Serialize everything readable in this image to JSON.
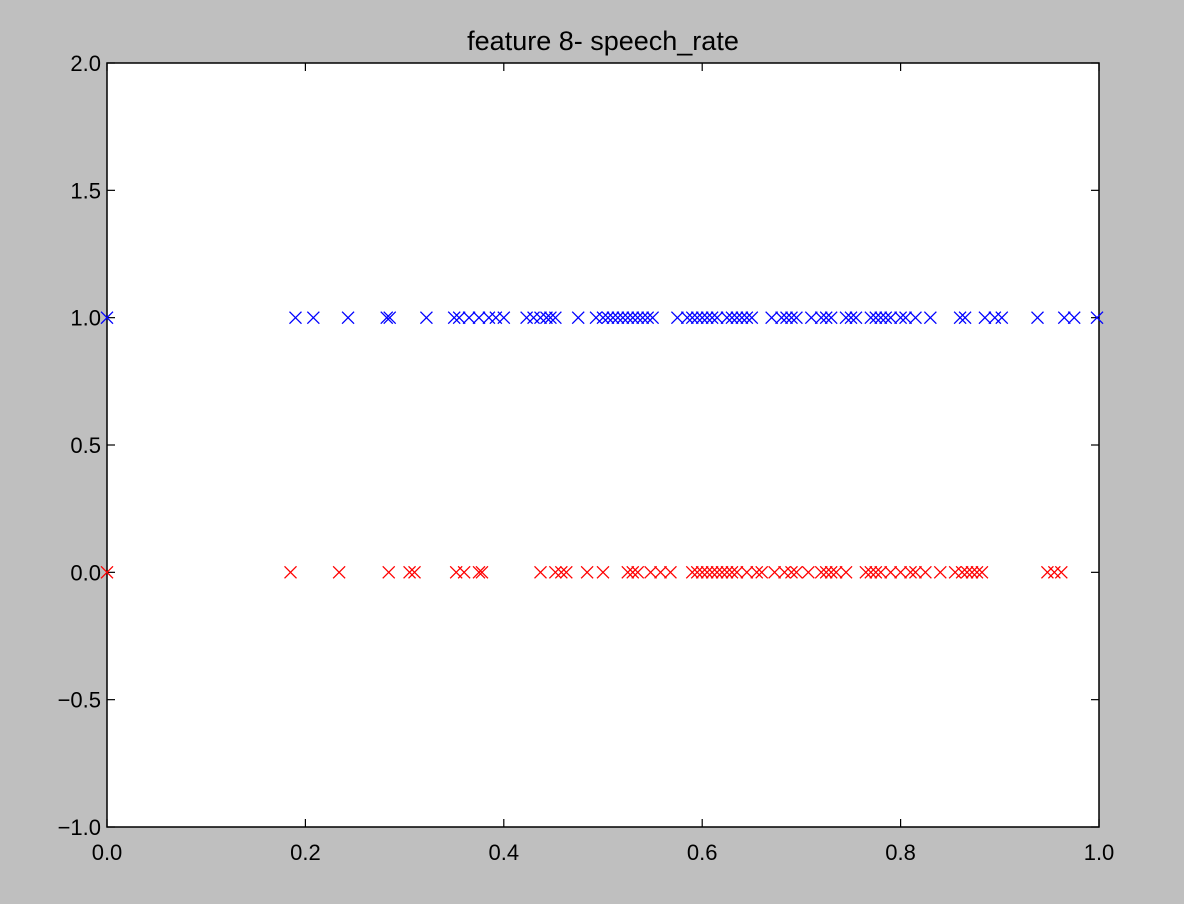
{
  "chart_data": {
    "type": "scatter",
    "title": "feature 8- speech_rate",
    "xlabel": "",
    "ylabel": "",
    "xlim": [
      0.0,
      1.0
    ],
    "ylim": [
      -1.0,
      2.0
    ],
    "x_ticks": [
      "0.0",
      "0.2",
      "0.4",
      "0.6",
      "0.8",
      "1.0"
    ],
    "y_ticks": [
      "−1.0",
      "−0.5",
      "0.0",
      "0.5",
      "1.0",
      "1.5",
      "2.0"
    ],
    "grid": false,
    "legend": "none",
    "marker": "x",
    "series": [
      {
        "color": "#0000ff",
        "y": 1.0,
        "x": [
          0.0,
          0.19,
          0.208,
          0.243,
          0.282,
          0.285,
          0.322,
          0.35,
          0.355,
          0.365,
          0.375,
          0.385,
          0.392,
          0.4,
          0.423,
          0.43,
          0.437,
          0.443,
          0.447,
          0.452,
          0.475,
          0.493,
          0.5,
          0.505,
          0.51,
          0.515,
          0.52,
          0.525,
          0.53,
          0.535,
          0.54,
          0.545,
          0.55,
          0.575,
          0.585,
          0.59,
          0.595,
          0.6,
          0.605,
          0.61,
          0.615,
          0.625,
          0.63,
          0.635,
          0.64,
          0.645,
          0.65,
          0.67,
          0.68,
          0.685,
          0.69,
          0.695,
          0.71,
          0.72,
          0.725,
          0.73,
          0.745,
          0.75,
          0.755,
          0.77,
          0.775,
          0.78,
          0.785,
          0.79,
          0.8,
          0.805,
          0.815,
          0.83,
          0.86,
          0.865,
          0.885,
          0.895,
          0.902,
          0.938,
          0.965,
          0.975,
          0.998
        ]
      },
      {
        "color": "#ff0000",
        "y": 0.0,
        "x": [
          0.0,
          0.185,
          0.234,
          0.284,
          0.305,
          0.31,
          0.352,
          0.36,
          0.375,
          0.378,
          0.437,
          0.452,
          0.458,
          0.463,
          0.484,
          0.5,
          0.525,
          0.53,
          0.535,
          0.548,
          0.558,
          0.568,
          0.59,
          0.595,
          0.6,
          0.605,
          0.61,
          0.615,
          0.62,
          0.625,
          0.63,
          0.635,
          0.645,
          0.655,
          0.66,
          0.673,
          0.683,
          0.69,
          0.695,
          0.707,
          0.72,
          0.725,
          0.73,
          0.735,
          0.745,
          0.765,
          0.77,
          0.775,
          0.78,
          0.79,
          0.8,
          0.81,
          0.815,
          0.825,
          0.84,
          0.855,
          0.862,
          0.867,
          0.872,
          0.877,
          0.882,
          0.948,
          0.955,
          0.962
        ]
      }
    ]
  }
}
